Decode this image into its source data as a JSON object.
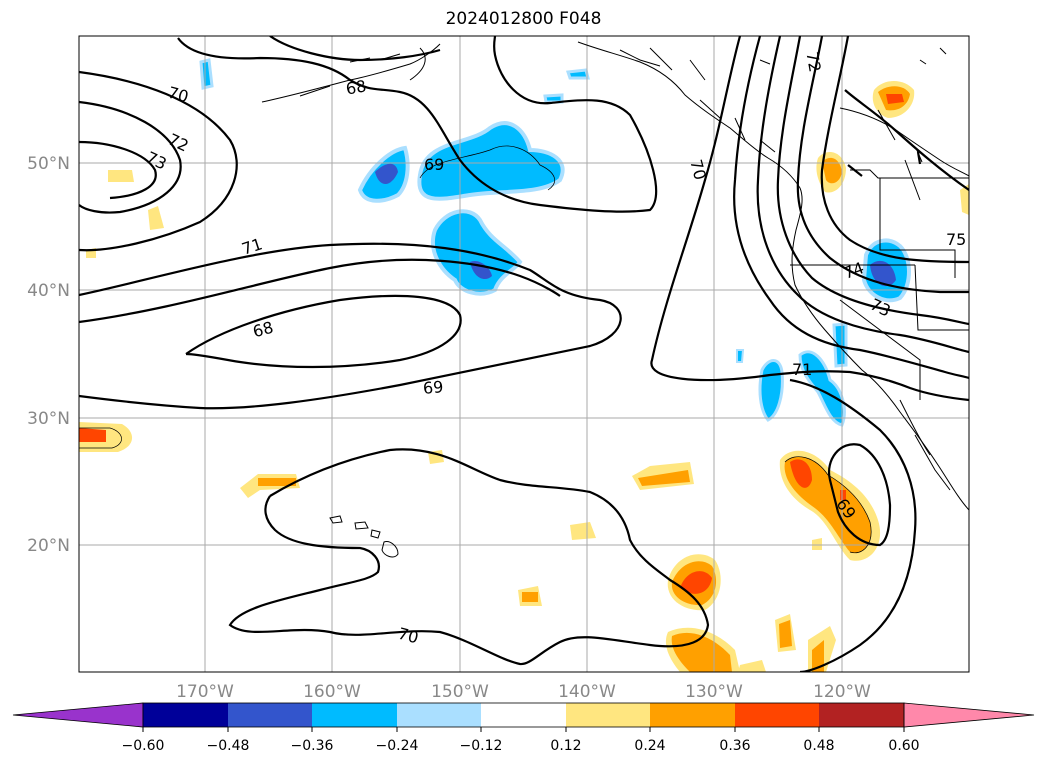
{
  "title": "2024012800 F048",
  "map": {
    "projection": "plate-carree",
    "lon_range": [
      -180,
      -110
    ],
    "lat_range": [
      10,
      60
    ],
    "gridlines": true,
    "lon_ticks": [
      -170,
      -160,
      -150,
      -140,
      -130,
      -120
    ],
    "lat_ticks": [
      20,
      30,
      40,
      50
    ],
    "lon_tick_labels": [
      "170°W",
      "160°W",
      "150°W",
      "140°W",
      "130°W",
      "120°W"
    ],
    "lat_tick_labels": [
      "20°N",
      "30°N",
      "40°N",
      "50°N"
    ],
    "contour_labels": [
      "70",
      "72",
      "73",
      "68",
      "69",
      "71",
      "68",
      "69",
      "70",
      "72",
      "70",
      "75",
      "74",
      "73",
      "71",
      "69",
      "70"
    ],
    "colors": {
      "contour": "#000000",
      "shading": [
        "#9933cc",
        "#000099",
        "#3355cc",
        "#00bbff",
        "#aadfff",
        "#ffffff",
        "#ffe680",
        "#ffa000",
        "#ff4500",
        "#b22222",
        "#ff88aa"
      ]
    }
  },
  "colorbar": {
    "extend": "both",
    "tick_labels": [
      "−0.60",
      "−0.48",
      "−0.36",
      "−0.24",
      "−0.12",
      "0.12",
      "0.24",
      "0.36",
      "0.48",
      "0.60"
    ]
  }
}
